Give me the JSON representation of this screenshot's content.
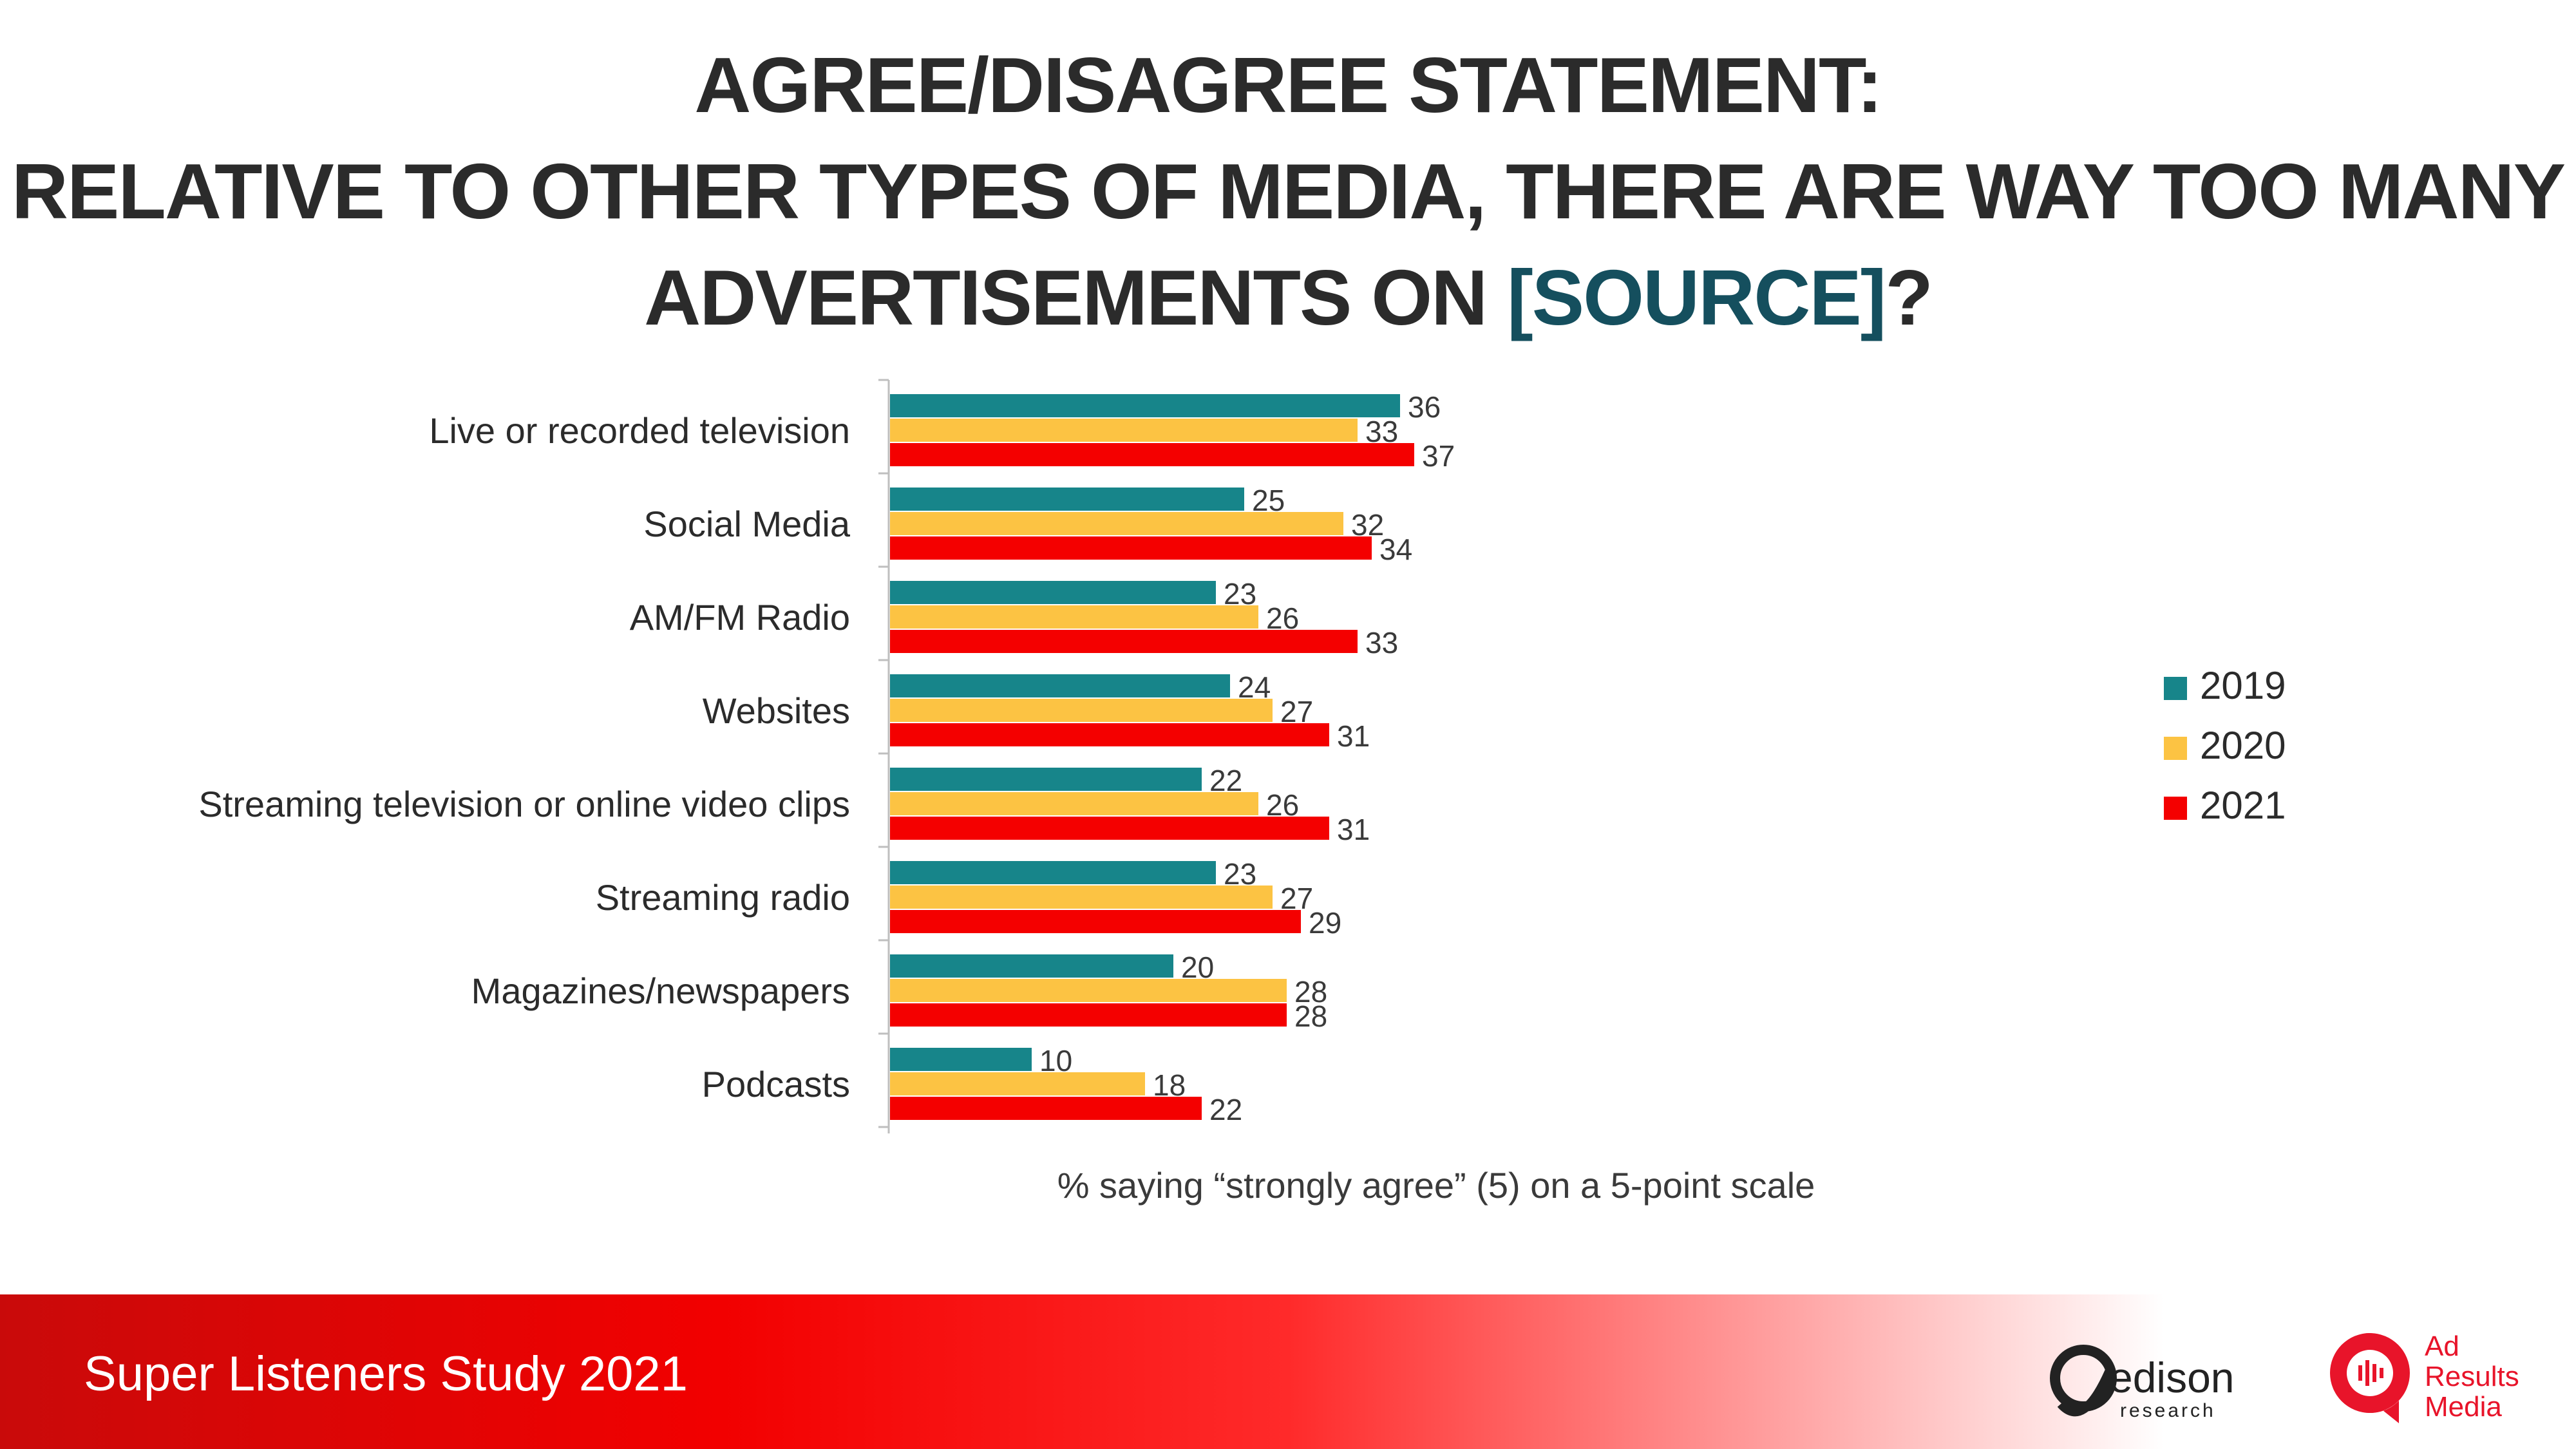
{
  "title": {
    "line1": "AGREE/DISAGREE STATEMENT:",
    "line2": "RELATIVE TO OTHER TYPES OF MEDIA, THERE ARE WAY TOO MANY",
    "line3_start": "ADVERTISEMENTS ON ",
    "line3_highlight": "[SOURCE]",
    "line3_end": "?",
    "highlight_color": "#154f5e"
  },
  "chart_data": {
    "type": "bar",
    "orientation": "horizontal",
    "categories": [
      "Live or recorded television",
      "Social Media",
      "AM/FM Radio",
      "Websites",
      "Streaming television or online video clips",
      "Streaming radio",
      "Magazines/newspapers",
      "Podcasts"
    ],
    "series": [
      {
        "name": "2019",
        "color": "#17858a",
        "values": [
          36,
          25,
          23,
          24,
          22,
          23,
          20,
          10
        ]
      },
      {
        "name": "2020",
        "color": "#fcc343",
        "values": [
          33,
          32,
          26,
          27,
          26,
          27,
          28,
          18
        ]
      },
      {
        "name": "2021",
        "color": "#f40000",
        "values": [
          37,
          34,
          33,
          31,
          31,
          29,
          28,
          22
        ]
      }
    ],
    "xlabel": "% saying “strongly agree” (5) on a 5-point scale",
    "xlim": [
      0,
      100
    ],
    "grid": false,
    "legend_position": "right"
  },
  "footer": {
    "text": "Super Listeners Study 2021",
    "logos": {
      "edison_wordmark": "edison",
      "edison_subtext": "research",
      "ad_results_line1": "Ad",
      "ad_results_line2": "Results",
      "ad_results_line3": "Media"
    }
  }
}
